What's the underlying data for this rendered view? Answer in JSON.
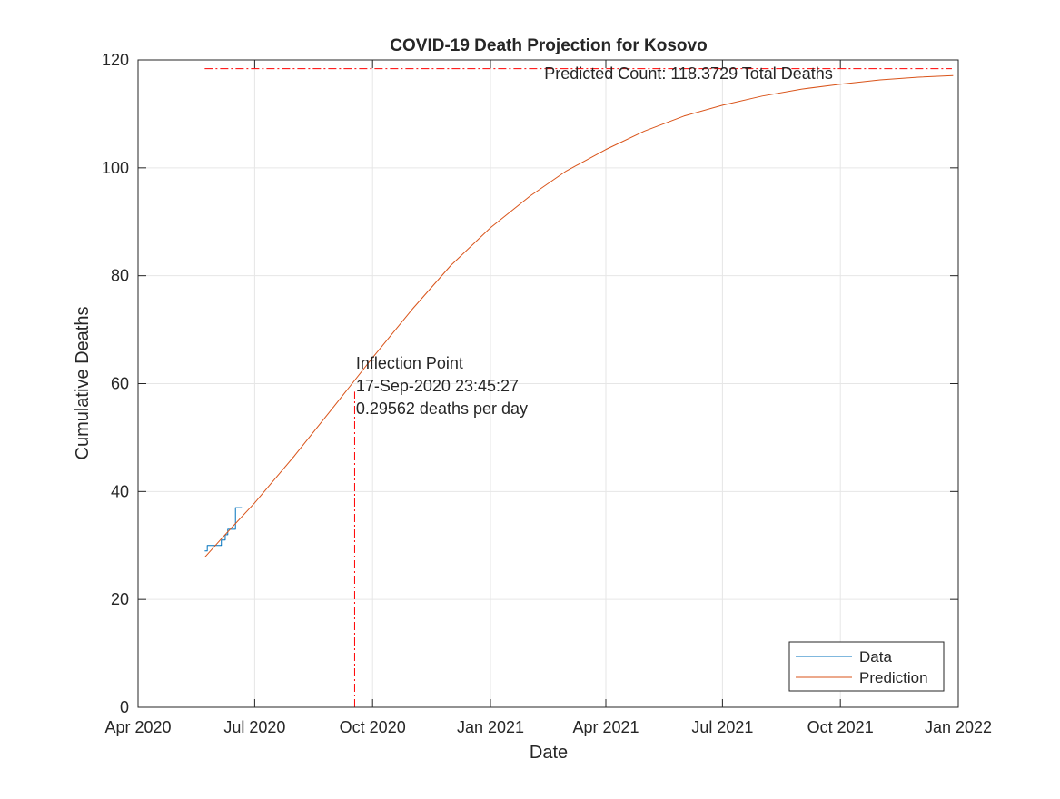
{
  "chart_data": {
    "type": "line",
    "title": "COVID-19 Death Projection for Kosovo",
    "xlabel": "Date",
    "ylabel": "Cumulative Deaths",
    "xlim": [
      "2020-04-01",
      "2022-01-01"
    ],
    "ylim": [
      0,
      120
    ],
    "x_ticks": [
      {
        "date": "2020-04-01",
        "label": "Apr 2020"
      },
      {
        "date": "2020-07-01",
        "label": "Jul 2020"
      },
      {
        "date": "2020-10-01",
        "label": "Oct 2020"
      },
      {
        "date": "2021-01-01",
        "label": "Jan 2021"
      },
      {
        "date": "2021-04-01",
        "label": "Apr 2021"
      },
      {
        "date": "2021-07-01",
        "label": "Jul 2021"
      },
      {
        "date": "2021-10-01",
        "label": "Oct 2021"
      },
      {
        "date": "2022-01-01",
        "label": "Jan 2022"
      }
    ],
    "y_ticks": [
      0,
      20,
      40,
      60,
      80,
      100,
      120
    ],
    "grid": true,
    "legend_position": "bottom-right",
    "series": [
      {
        "name": "Data",
        "color": "#0072bd",
        "style": "stairs",
        "points": [
          {
            "x": "2020-05-23",
            "y": 29
          },
          {
            "x": "2020-05-25",
            "y": 30
          },
          {
            "x": "2020-05-31",
            "y": 30
          },
          {
            "x": "2020-06-01",
            "y": 30
          },
          {
            "x": "2020-06-05",
            "y": 31
          },
          {
            "x": "2020-06-08",
            "y": 32
          },
          {
            "x": "2020-06-10",
            "y": 33
          },
          {
            "x": "2020-06-16",
            "y": 37
          },
          {
            "x": "2020-06-21",
            "y": 37
          }
        ]
      },
      {
        "name": "Prediction",
        "color": "#d95319",
        "style": "line",
        "points": [
          {
            "x": "2020-05-23",
            "y": 27.8
          },
          {
            "x": "2020-06-06",
            "y": 31.5
          },
          {
            "x": "2020-07-01",
            "y": 37.9
          },
          {
            "x": "2020-08-01",
            "y": 46.6
          },
          {
            "x": "2020-09-01",
            "y": 55.8
          },
          {
            "x": "2020-10-01",
            "y": 64.8
          },
          {
            "x": "2020-11-01",
            "y": 73.8
          },
          {
            "x": "2020-12-01",
            "y": 81.9
          },
          {
            "x": "2021-01-01",
            "y": 88.9
          },
          {
            "x": "2021-02-01",
            "y": 94.8
          },
          {
            "x": "2021-03-01",
            "y": 99.4
          },
          {
            "x": "2021-04-01",
            "y": 103.4
          },
          {
            "x": "2021-05-01",
            "y": 106.8
          },
          {
            "x": "2021-06-01",
            "y": 109.6
          },
          {
            "x": "2021-07-01",
            "y": 111.6
          },
          {
            "x": "2021-08-01",
            "y": 113.3
          },
          {
            "x": "2021-09-01",
            "y": 114.6
          },
          {
            "x": "2021-10-01",
            "y": 115.5
          },
          {
            "x": "2021-11-01",
            "y": 116.3
          },
          {
            "x": "2021-12-01",
            "y": 116.8
          },
          {
            "x": "2021-12-28",
            "y": 117.1
          }
        ]
      }
    ],
    "reference_lines": [
      {
        "orientation": "horizontal",
        "y": 118.3729,
        "x_from": "2020-05-23",
        "x_to": "2021-12-27",
        "color": "#ff0000",
        "dash": "dashdot"
      },
      {
        "orientation": "vertical",
        "x": "2020-09-17",
        "y_from": 0,
        "y_to": 58.5,
        "color": "#ff0000",
        "dash": "dashdot"
      }
    ],
    "annotations": [
      {
        "id": "predicted-count",
        "lines": [
          "Predicted Count: 118.3729 Total Deaths"
        ],
        "x": "2021-02-12",
        "y": 116.5
      },
      {
        "id": "inflection-point",
        "lines": [
          "Inflection Point",
          "17-Sep-2020 23:45:27",
          "0.29562 deaths per day"
        ],
        "x": "2020-09-18",
        "y": 62.8
      }
    ]
  }
}
